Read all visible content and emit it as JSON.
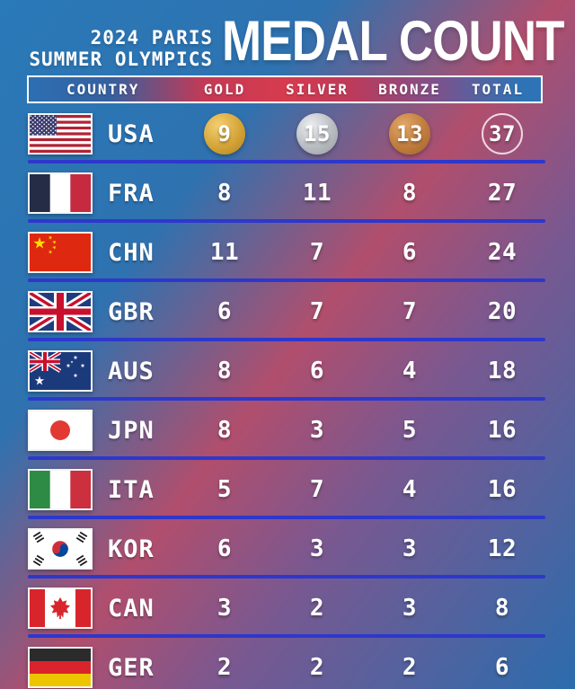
{
  "header": {
    "event_line1": "2024 PARIS",
    "event_line2": "SUMMER OLYMPICS",
    "title": "MEDAL COUNT"
  },
  "table": {
    "columns": [
      "COUNTRY",
      "GOLD",
      "SILVER",
      "BRONZE",
      "TOTAL"
    ],
    "rows": [
      {
        "code": "USA",
        "flag": "usa-flag",
        "gold": 9,
        "silver": 15,
        "bronze": 13,
        "total": 37,
        "show_medal_icons": true
      },
      {
        "code": "FRA",
        "flag": "france-flag",
        "gold": 8,
        "silver": 11,
        "bronze": 8,
        "total": 27,
        "show_medal_icons": false
      },
      {
        "code": "CHN",
        "flag": "china-flag",
        "gold": 11,
        "silver": 7,
        "bronze": 6,
        "total": 24,
        "show_medal_icons": false
      },
      {
        "code": "GBR",
        "flag": "great-britain-flag",
        "gold": 6,
        "silver": 7,
        "bronze": 7,
        "total": 20,
        "show_medal_icons": false
      },
      {
        "code": "AUS",
        "flag": "australia-flag",
        "gold": 8,
        "silver": 6,
        "bronze": 4,
        "total": 18,
        "show_medal_icons": false
      },
      {
        "code": "JPN",
        "flag": "japan-flag",
        "gold": 8,
        "silver": 3,
        "bronze": 5,
        "total": 16,
        "show_medal_icons": false
      },
      {
        "code": "ITA",
        "flag": "italy-flag",
        "gold": 5,
        "silver": 7,
        "bronze": 4,
        "total": 16,
        "show_medal_icons": false
      },
      {
        "code": "KOR",
        "flag": "south-korea-flag",
        "gold": 6,
        "silver": 3,
        "bronze": 3,
        "total": 12,
        "show_medal_icons": false
      },
      {
        "code": "CAN",
        "flag": "canada-flag",
        "gold": 3,
        "silver": 2,
        "bronze": 3,
        "total": 8,
        "show_medal_icons": false
      },
      {
        "code": "GER",
        "flag": "germany-flag",
        "gold": 2,
        "silver": 2,
        "bronze": 2,
        "total": 6,
        "show_medal_icons": false
      }
    ]
  },
  "colors": {
    "background_blue": "#2a79b8",
    "background_rose": "#b14e6d",
    "divider_blue": "#2e37cc",
    "gold_medal": "#d4a437",
    "silver_medal": "#b9bdc2",
    "bronze_medal": "#c07c3d",
    "total_ring": "#f0d7e1",
    "header_strip_red": "#d63b4e",
    "header_strip_blue": "#2c6fb2",
    "text_white": "#ffffff"
  }
}
